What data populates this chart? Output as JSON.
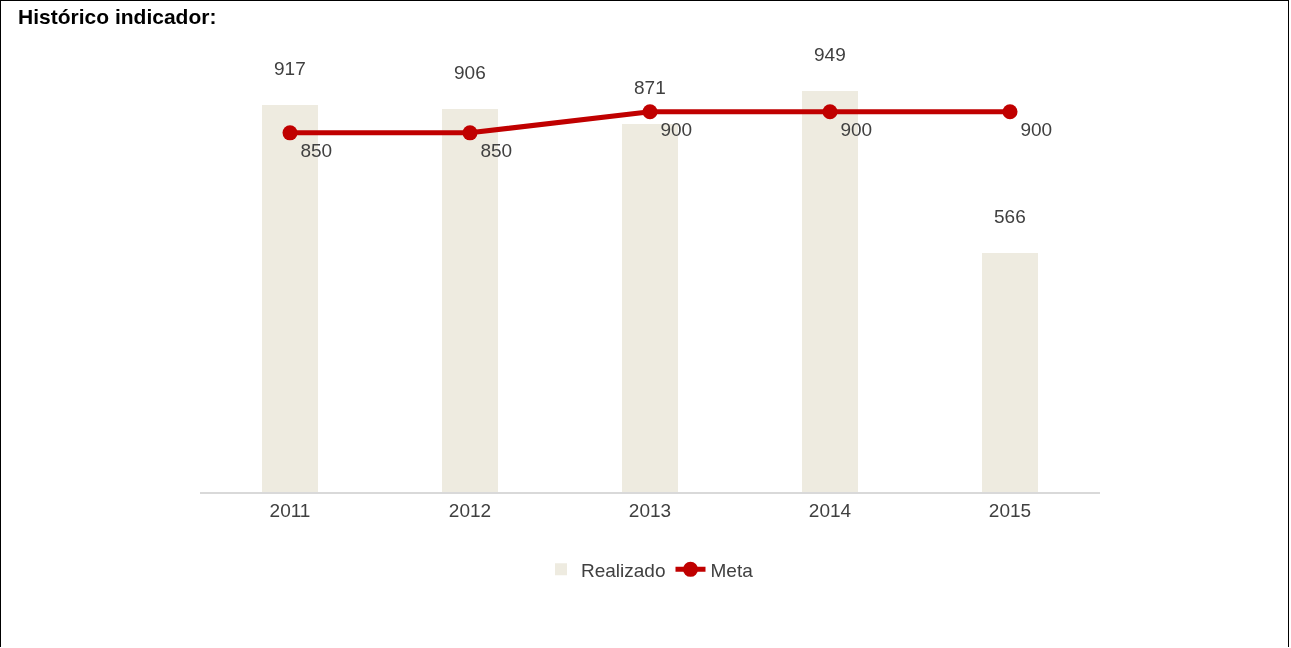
{
  "chart_data": {
    "type": "bar",
    "title": "Histórico indicador:",
    "categories": [
      "2011",
      "2012",
      "2013",
      "2014",
      "2015"
    ],
    "series": [
      {
        "name": "Realizado",
        "color": "#eeebe0",
        "values": [
          917,
          906,
          871,
          949,
          566
        ]
      },
      {
        "name": "Meta",
        "type": "line",
        "color": "#c00000",
        "values": [
          850,
          850,
          900,
          900,
          900
        ]
      }
    ],
    "data_labels": true,
    "grid": false,
    "legend": "bottom",
    "marker": "circle",
    "line_style": "solid"
  }
}
